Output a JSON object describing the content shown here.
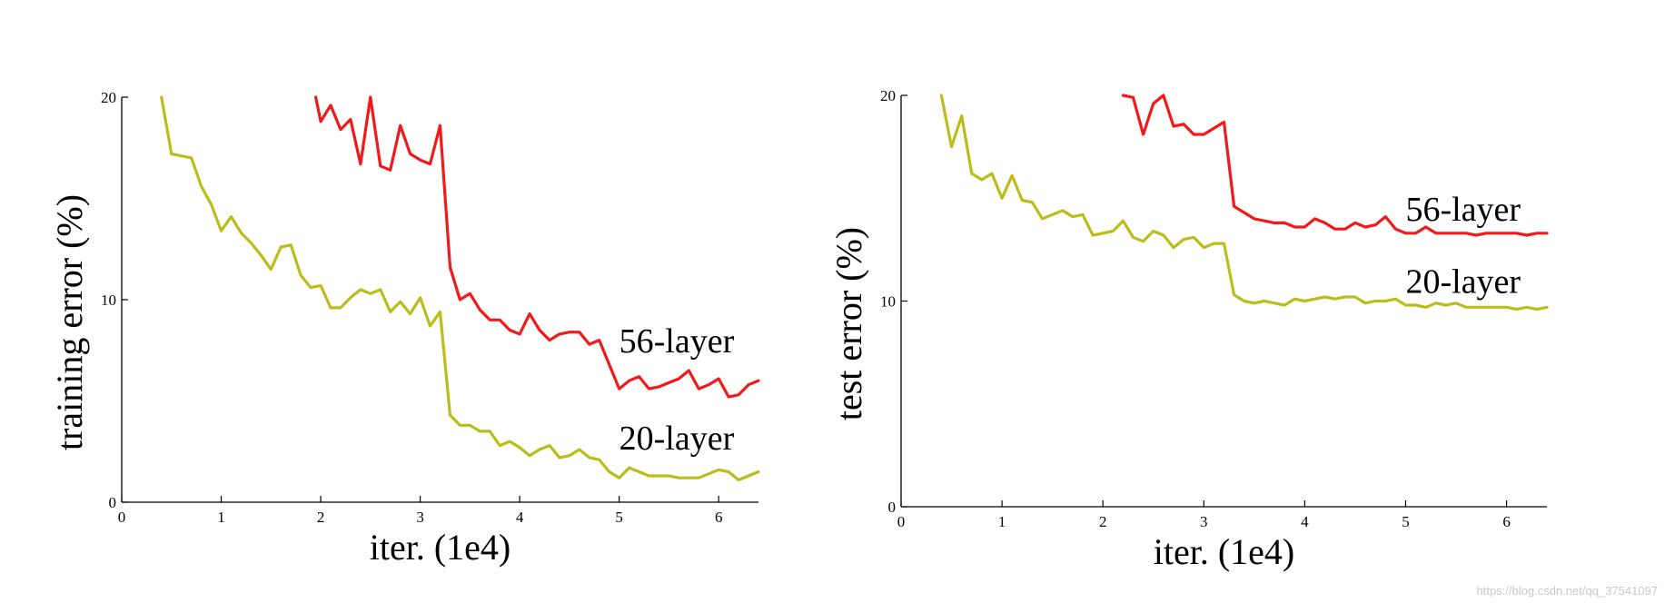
{
  "watermark": "https://blog.csdn.net/qq_37541097",
  "chart_data": [
    {
      "type": "line",
      "xlabel": "iter. (1e4)",
      "ylabel": "training error (%)",
      "xlim": [
        0,
        6.4
      ],
      "ylim": [
        0,
        20
      ],
      "xticks": [
        0,
        1,
        2,
        3,
        4,
        5,
        6
      ],
      "yticks": [
        0,
        10,
        20
      ],
      "grid": false,
      "series": [
        {
          "name": "56-layer",
          "color": "#f01a1a",
          "label_at": [
            5.0,
            7.4
          ],
          "x": [
            1.95,
            2.0,
            2.1,
            2.2,
            2.3,
            2.4,
            2.5,
            2.6,
            2.7,
            2.8,
            2.9,
            3.0,
            3.1,
            3.2,
            3.3,
            3.4,
            3.5,
            3.6,
            3.7,
            3.8,
            3.9,
            4.0,
            4.1,
            4.2,
            4.3,
            4.4,
            4.5,
            4.6,
            4.7,
            4.8,
            4.9,
            5.0,
            5.1,
            5.2,
            5.3,
            5.4,
            5.5,
            5.6,
            5.7,
            5.8,
            5.9,
            6.0,
            6.1,
            6.2,
            6.3,
            6.4
          ],
          "y": [
            20.0,
            18.8,
            19.6,
            18.4,
            18.9,
            16.7,
            20.0,
            16.6,
            16.4,
            18.6,
            17.2,
            16.9,
            16.7,
            18.6,
            11.6,
            10.0,
            10.3,
            9.5,
            9.0,
            9.0,
            8.5,
            8.3,
            9.3,
            8.5,
            8.0,
            8.3,
            8.4,
            8.4,
            7.8,
            8.0,
            6.8,
            5.6,
            6.0,
            6.2,
            5.6,
            5.7,
            5.9,
            6.1,
            6.5,
            5.6,
            5.8,
            6.1,
            5.2,
            5.3,
            5.8,
            6.0
          ]
        },
        {
          "name": "20-layer",
          "color": "#bcbc1a",
          "label_at": [
            5.0,
            2.6
          ],
          "x": [
            0.4,
            0.5,
            0.6,
            0.7,
            0.8,
            0.9,
            1.0,
            1.1,
            1.2,
            1.3,
            1.4,
            1.5,
            1.6,
            1.7,
            1.8,
            1.9,
            2.0,
            2.1,
            2.2,
            2.3,
            2.4,
            2.5,
            2.6,
            2.7,
            2.8,
            2.9,
            3.0,
            3.1,
            3.2,
            3.3,
            3.4,
            3.5,
            3.6,
            3.7,
            3.8,
            3.9,
            4.0,
            4.1,
            4.2,
            4.3,
            4.4,
            4.5,
            4.6,
            4.7,
            4.8,
            4.9,
            5.0,
            5.1,
            5.2,
            5.3,
            5.4,
            5.5,
            5.6,
            5.7,
            5.8,
            5.9,
            6.0,
            6.1,
            6.2,
            6.3,
            6.4
          ],
          "y": [
            20.0,
            17.2,
            17.1,
            17.0,
            15.6,
            14.7,
            13.4,
            14.1,
            13.3,
            12.8,
            12.2,
            11.5,
            12.6,
            12.7,
            11.2,
            10.6,
            10.7,
            9.6,
            9.6,
            10.1,
            10.5,
            10.3,
            10.5,
            9.4,
            9.9,
            9.3,
            10.1,
            8.7,
            9.4,
            4.3,
            3.8,
            3.8,
            3.5,
            3.5,
            2.8,
            3.0,
            2.7,
            2.3,
            2.6,
            2.8,
            2.2,
            2.3,
            2.6,
            2.2,
            2.1,
            1.5,
            1.2,
            1.7,
            1.5,
            1.3,
            1.3,
            1.3,
            1.2,
            1.2,
            1.2,
            1.4,
            1.6,
            1.5,
            1.1,
            1.3,
            1.5
          ]
        }
      ]
    },
    {
      "type": "line",
      "xlabel": "iter. (1e4)",
      "ylabel": "test error (%)",
      "xlim": [
        0,
        6.4
      ],
      "ylim": [
        0,
        20
      ],
      "xticks": [
        0,
        1,
        2,
        3,
        4,
        5,
        6
      ],
      "yticks": [
        0,
        10,
        20
      ],
      "grid": false,
      "series": [
        {
          "name": "56-layer",
          "color": "#f01a1a",
          "label_at": [
            5.0,
            13.9
          ],
          "x": [
            2.2,
            2.3,
            2.4,
            2.5,
            2.6,
            2.7,
            2.8,
            2.9,
            3.0,
            3.1,
            3.2,
            3.3,
            3.4,
            3.5,
            3.6,
            3.7,
            3.8,
            3.9,
            4.0,
            4.1,
            4.2,
            4.3,
            4.4,
            4.5,
            4.6,
            4.7,
            4.8,
            4.9,
            5.0,
            5.1,
            5.2,
            5.3,
            5.4,
            5.5,
            5.6,
            5.7,
            5.8,
            5.9,
            6.0,
            6.1,
            6.2,
            6.3,
            6.4
          ],
          "y": [
            20.0,
            19.9,
            18.1,
            19.6,
            20.0,
            18.5,
            18.6,
            18.1,
            18.1,
            18.4,
            18.7,
            14.6,
            14.3,
            14.0,
            13.9,
            13.8,
            13.8,
            13.6,
            13.6,
            14.0,
            13.8,
            13.5,
            13.5,
            13.8,
            13.6,
            13.7,
            14.1,
            13.5,
            13.3,
            13.3,
            13.6,
            13.3,
            13.3,
            13.3,
            13.3,
            13.2,
            13.3,
            13.3,
            13.3,
            13.3,
            13.2,
            13.3,
            13.3
          ]
        },
        {
          "name": "20-layer",
          "color": "#bcbc1a",
          "label_at": [
            5.0,
            10.4
          ],
          "x": [
            0.4,
            0.5,
            0.6,
            0.7,
            0.8,
            0.9,
            1.0,
            1.1,
            1.2,
            1.3,
            1.4,
            1.5,
            1.6,
            1.7,
            1.8,
            1.9,
            2.0,
            2.1,
            2.2,
            2.3,
            2.4,
            2.5,
            2.6,
            2.7,
            2.8,
            2.9,
            3.0,
            3.1,
            3.2,
            3.3,
            3.4,
            3.5,
            3.6,
            3.7,
            3.8,
            3.9,
            4.0,
            4.1,
            4.2,
            4.3,
            4.4,
            4.5,
            4.6,
            4.7,
            4.8,
            4.9,
            5.0,
            5.1,
            5.2,
            5.3,
            5.4,
            5.5,
            5.6,
            5.7,
            5.8,
            5.9,
            6.0,
            6.1,
            6.2,
            6.3,
            6.4
          ],
          "y": [
            20.0,
            17.5,
            19.0,
            16.2,
            15.9,
            16.2,
            15.0,
            16.1,
            14.9,
            14.8,
            14.0,
            14.2,
            14.4,
            14.1,
            14.2,
            13.2,
            13.3,
            13.4,
            13.9,
            13.1,
            12.9,
            13.4,
            13.2,
            12.6,
            13.0,
            13.1,
            12.6,
            12.8,
            12.8,
            10.3,
            10.0,
            9.9,
            10.0,
            9.9,
            9.8,
            10.1,
            10.0,
            10.1,
            10.2,
            10.1,
            10.2,
            10.2,
            9.9,
            10.0,
            10.0,
            10.1,
            9.8,
            9.8,
            9.7,
            9.9,
            9.8,
            9.9,
            9.7,
            9.7,
            9.7,
            9.7,
            9.7,
            9.6,
            9.7,
            9.6,
            9.7
          ]
        }
      ]
    }
  ]
}
